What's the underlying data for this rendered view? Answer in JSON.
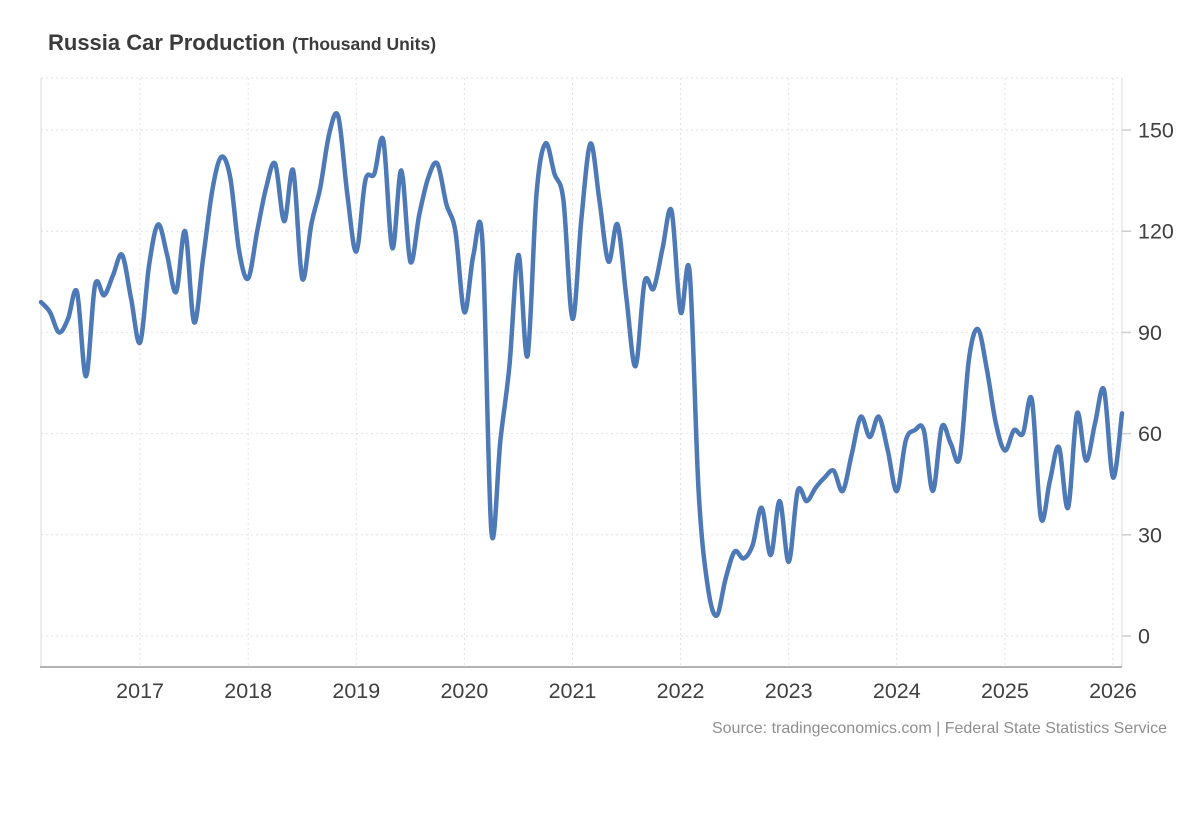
{
  "header": {
    "title": "Russia Car Production",
    "subtitle": "(Thousand Units)"
  },
  "source_note": "Source: tradingeconomics.com | Federal State Statistics Service",
  "chart_data": {
    "type": "line",
    "title": "Russia Car Production",
    "subtitle": "(Thousand Units)",
    "unit": "Thousand Units",
    "frequency": "monthly",
    "start": "2016-02",
    "end": "2026-02",
    "values": [
      99,
      96,
      90,
      94,
      102,
      77,
      104,
      101,
      107,
      113,
      100,
      87,
      110,
      122,
      113,
      102,
      120,
      93,
      112,
      132,
      142,
      136,
      114,
      106,
      120,
      133,
      140,
      123,
      138,
      106,
      122,
      133,
      149,
      154,
      131,
      114,
      135,
      137,
      147,
      115,
      138,
      111,
      125,
      136,
      140,
      128,
      120,
      96,
      113,
      117,
      31,
      58,
      80,
      113,
      83,
      131,
      146,
      137,
      129,
      94,
      124,
      146,
      129,
      111,
      122,
      100,
      80,
      105,
      103,
      115,
      126,
      96,
      108,
      43,
      15,
      6,
      17,
      25,
      23,
      27,
      38,
      24,
      40,
      22,
      43,
      40,
      44,
      47,
      49,
      43,
      54,
      65,
      59,
      65,
      55,
      43,
      58,
      61,
      61,
      43,
      62,
      57,
      53,
      82,
      91,
      79,
      63,
      55,
      61,
      60,
      70,
      35,
      46,
      56,
      38,
      66,
      52,
      63,
      73,
      47,
      66
    ],
    "x_tick_labels": [
      "2017",
      "2018",
      "2019",
      "2020",
      "2021",
      "2022",
      "2023",
      "2024",
      "2025",
      "2026"
    ],
    "y_ticks": [
      0,
      30,
      60,
      90,
      120,
      150
    ],
    "ylim": [
      -9,
      165
    ],
    "grid": "dotted",
    "legend": "none",
    "line_color": "#4e79b7",
    "grid_color": "#e2e2e2",
    "axis_line_color": "#b3b3b3",
    "border_color": "#d9d9d9",
    "tick_label_color": "#404040",
    "source": "Source: tradingeconomics.com | Federal State Statistics Service"
  }
}
